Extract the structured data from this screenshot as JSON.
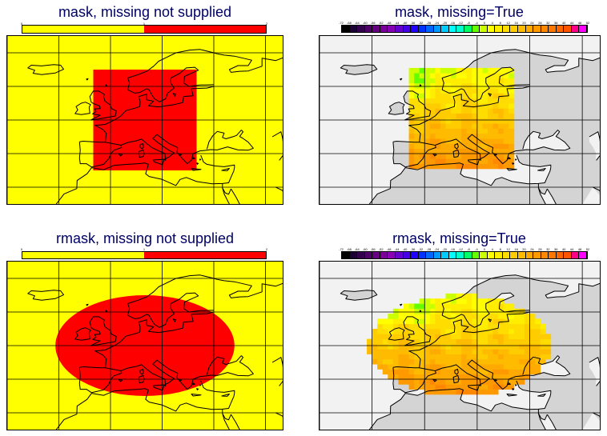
{
  "panels": [
    {
      "id": "tl",
      "title": "mask, missing not supplied",
      "colorbar": {
        "type": "discrete-2",
        "colors": [
          "#ffff00",
          "#ff0000"
        ],
        "labels": [
          "0",
          "1",
          "2"
        ]
      },
      "map": {
        "background": "#ffff00",
        "land_fill": "none",
        "field": {
          "shape": "rectangle",
          "color": "#ff0000",
          "lon_range": [
            -5,
            25
          ],
          "lat_range": [
            35,
            65
          ]
        }
      }
    },
    {
      "id": "tr",
      "title": "mask, missing=True",
      "colorbar": {
        "type": "temperature",
        "labels": [
          "-72",
          "-68",
          "-64",
          "-60",
          "-56",
          "-52",
          "-48",
          "-44",
          "-40",
          "-36",
          "-32",
          "-28",
          "-24",
          "-20",
          "-16",
          "-12",
          "-8",
          "-4",
          "0",
          "4",
          "8",
          "12",
          "16",
          "20",
          "24",
          "28",
          "32",
          "36",
          "40",
          "44",
          "48",
          "52"
        ]
      },
      "map": {
        "background": "#f2f2f2",
        "land_fill": "#d4d4d4",
        "field": {
          "shape": "rectangle",
          "palette": "temperature",
          "lon_range": [
            -5,
            25
          ],
          "lat_range": [
            35,
            65
          ]
        }
      }
    },
    {
      "id": "bl",
      "title": "rmask, missing not supplied",
      "colorbar": {
        "type": "discrete-2",
        "colors": [
          "#ffff00",
          "#ff0000"
        ],
        "labels": [
          "0",
          "1",
          "2"
        ]
      },
      "map": {
        "background": "#ffff00",
        "land_fill": "none",
        "field": {
          "shape": "ellipse",
          "color": "#ff0000",
          "center": [
            10,
            50
          ],
          "radius_deg": [
            26,
            15
          ]
        }
      }
    },
    {
      "id": "br",
      "title": "rmask, missing=True",
      "colorbar": {
        "type": "temperature",
        "labels": [
          "-72",
          "-68",
          "-64",
          "-60",
          "-56",
          "-52",
          "-48",
          "-44",
          "-40",
          "-36",
          "-32",
          "-28",
          "-24",
          "-20",
          "-16",
          "-12",
          "-8",
          "-4",
          "0",
          "4",
          "8",
          "12",
          "16",
          "20",
          "24",
          "28",
          "32",
          "36",
          "40",
          "44",
          "48",
          "52"
        ]
      },
      "map": {
        "background": "#f2f2f2",
        "land_fill": "#d4d4d4",
        "field": {
          "shape": "ellipse",
          "palette": "temperature",
          "center": [
            10,
            50
          ],
          "radius_deg": [
            26,
            15
          ]
        }
      }
    }
  ],
  "map_extent": {
    "lon": [
      -30,
      50
    ],
    "lat": [
      25,
      75
    ]
  },
  "graticule": {
    "lon_lines": [
      -30,
      -15,
      0,
      15,
      30,
      45
    ],
    "lat_lines": [
      30,
      40,
      50,
      60,
      70
    ]
  },
  "temperature_colors": [
    "#000000",
    "#1a0033",
    "#33004d",
    "#4d0066",
    "#660080",
    "#7a0099",
    "#8800b3",
    "#6600cc",
    "#4400e6",
    "#2200ff",
    "#0033ff",
    "#0066ff",
    "#0099ff",
    "#00ccff",
    "#00ffff",
    "#00ffcc",
    "#00ff66",
    "#66ff00",
    "#ccff00",
    "#ffff00",
    "#ffee00",
    "#ffdd00",
    "#ffcc00",
    "#ffbb00",
    "#ffaa00",
    "#ff9900",
    "#ff8800",
    "#ff7700",
    "#ff6600",
    "#ff5500",
    "#ff0088",
    "#ff00ff"
  ]
}
